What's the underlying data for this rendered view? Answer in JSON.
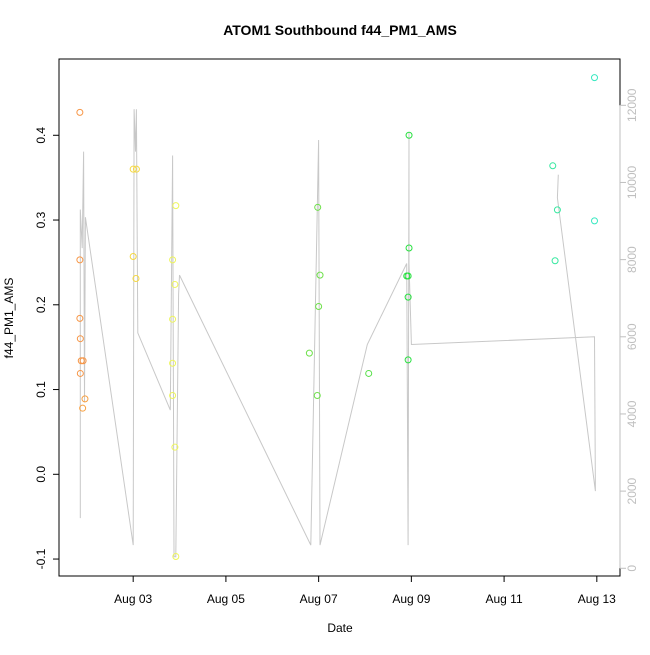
{
  "chart_data": {
    "type": "scatter",
    "title": "ATOM1 Southbound f44_PM1_AMS",
    "xlabel": "Date",
    "ylabel": "f44_PM1_AMS",
    "x_ticks": [
      "Aug 03",
      "Aug 05",
      "Aug 07",
      "Aug 09",
      "Aug 11",
      "Aug 13"
    ],
    "x_tick_days": [
      3,
      5,
      7,
      9,
      11,
      13
    ],
    "xlim_days": [
      1.4,
      13.5
    ],
    "y_ticks": [
      "-0.1",
      "0.0",
      "0.1",
      "0.2",
      "0.3",
      "0.4"
    ],
    "ylim": [
      -0.12,
      0.49
    ],
    "y2_ticks": [
      "0",
      "2000",
      "4000",
      "6000",
      "8000",
      "10000",
      "12000"
    ],
    "y2lim": [
      -200,
      13200
    ],
    "y2_color": "#bfbfbf",
    "grid": false,
    "points": [
      {
        "x": 1.85,
        "y": 0.427,
        "color": "#f79646"
      },
      {
        "x": 1.85,
        "y": 0.253,
        "color": "#f79646"
      },
      {
        "x": 1.85,
        "y": 0.184,
        "color": "#f79646"
      },
      {
        "x": 1.86,
        "y": 0.16,
        "color": "#f79646"
      },
      {
        "x": 1.88,
        "y": 0.134,
        "color": "#f79646"
      },
      {
        "x": 1.92,
        "y": 0.134,
        "color": "#f79646"
      },
      {
        "x": 1.86,
        "y": 0.119,
        "color": "#f79646"
      },
      {
        "x": 1.96,
        "y": 0.089,
        "color": "#f8a040"
      },
      {
        "x": 1.91,
        "y": 0.078,
        "color": "#f8a040"
      },
      {
        "x": 3.0,
        "y": 0.36,
        "color": "#f5d840"
      },
      {
        "x": 3.07,
        "y": 0.36,
        "color": "#f5d840"
      },
      {
        "x": 3.0,
        "y": 0.257,
        "color": "#f5d840"
      },
      {
        "x": 3.06,
        "y": 0.231,
        "color": "#f5d840"
      },
      {
        "x": 3.92,
        "y": 0.317,
        "color": "#eef55a"
      },
      {
        "x": 3.85,
        "y": 0.253,
        "color": "#eef55a"
      },
      {
        "x": 3.9,
        "y": 0.224,
        "color": "#eef55a"
      },
      {
        "x": 3.85,
        "y": 0.183,
        "color": "#eef55a"
      },
      {
        "x": 3.85,
        "y": 0.131,
        "color": "#eef55a"
      },
      {
        "x": 3.85,
        "y": 0.093,
        "color": "#eef55a"
      },
      {
        "x": 3.9,
        "y": 0.032,
        "color": "#eef55a"
      },
      {
        "x": 3.92,
        "y": -0.097,
        "color": "#eef55a"
      },
      {
        "x": 6.98,
        "y": 0.315,
        "color": "#6ee04a"
      },
      {
        "x": 7.03,
        "y": 0.235,
        "color": "#6ee04a"
      },
      {
        "x": 7.0,
        "y": 0.198,
        "color": "#6ee04a"
      },
      {
        "x": 6.8,
        "y": 0.143,
        "color": "#6ee04a"
      },
      {
        "x": 6.97,
        "y": 0.093,
        "color": "#6ee04a"
      },
      {
        "x": 8.08,
        "y": 0.119,
        "color": "#58e04a"
      },
      {
        "x": 8.95,
        "y": 0.4,
        "color": "#28e040"
      },
      {
        "x": 8.95,
        "y": 0.267,
        "color": "#28e040"
      },
      {
        "x": 8.9,
        "y": 0.234,
        "color": "#28e040"
      },
      {
        "x": 8.93,
        "y": 0.234,
        "color": "#28e040"
      },
      {
        "x": 8.93,
        "y": 0.209,
        "color": "#28e040"
      },
      {
        "x": 8.93,
        "y": 0.135,
        "color": "#28e040"
      },
      {
        "x": 12.05,
        "y": 0.364,
        "color": "#36e8a0"
      },
      {
        "x": 12.15,
        "y": 0.312,
        "color": "#36e8a0"
      },
      {
        "x": 12.1,
        "y": 0.252,
        "color": "#36e8a0"
      },
      {
        "x": 12.95,
        "y": 0.468,
        "color": "#36e8c0"
      },
      {
        "x": 12.95,
        "y": 0.299,
        "color": "#36e8c0"
      }
    ],
    "line_y2": [
      [
        1.86,
        1300
      ],
      [
        1.86,
        9300
      ],
      [
        1.9,
        8300
      ],
      [
        1.93,
        10800
      ],
      [
        1.95,
        4300
      ],
      [
        1.97,
        9100
      ],
      [
        3.0,
        600
      ],
      [
        3.02,
        11900
      ],
      [
        3.05,
        10800
      ],
      [
        3.07,
        11900
      ],
      [
        3.1,
        6100
      ],
      [
        3.8,
        4100
      ],
      [
        3.85,
        10700
      ],
      [
        3.88,
        300
      ],
      [
        3.92,
        300
      ],
      [
        3.98,
        7100
      ],
      [
        4.0,
        7600
      ],
      [
        6.83,
        600
      ],
      [
        7.0,
        11100
      ],
      [
        7.03,
        600
      ],
      [
        8.05,
        5800
      ],
      [
        8.9,
        7900
      ],
      [
        8.93,
        600
      ],
      [
        8.95,
        11300
      ],
      [
        8.95,
        7900
      ],
      [
        9.0,
        5800
      ],
      [
        12.95,
        6000
      ],
      [
        12.97,
        2000
      ],
      [
        12.15,
        9600
      ],
      [
        12.17,
        10200
      ]
    ]
  }
}
